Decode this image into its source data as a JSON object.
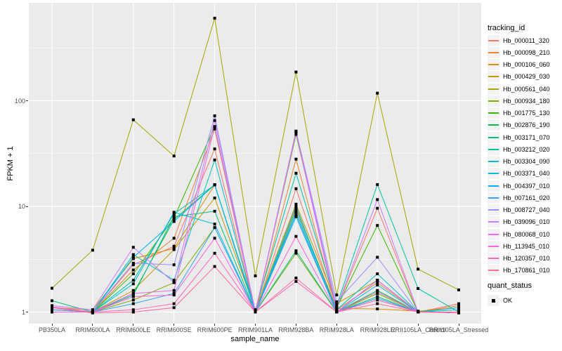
{
  "y_axis": {
    "title": "FPKM + 1"
  },
  "x_axis": {
    "title": "sample_name"
  },
  "legend": {
    "tracking_title": "tracking_id",
    "quant_title": "quant_status",
    "quant_ok_label": "OK"
  },
  "colors": {
    "panel_bg": "#EBEBEB",
    "grid": "#FFFFFF",
    "axis_text": "#4D4D4D",
    "point": "#000000",
    "legend_key_bg": "#F2F2F2"
  },
  "chart_data": {
    "type": "line",
    "xlabel": "sample_name",
    "ylabel": "FPKM + 1",
    "y_scale": "log10",
    "y_ticks": [
      1,
      10,
      100
    ],
    "y_minor_ticks": [
      3.162,
      31.62,
      316.2
    ],
    "ylim": [
      0.93,
      845
    ],
    "grid": true,
    "legend_position": "right",
    "point_marker": "filled-black-square",
    "x_categories": [
      "PB350LA",
      "RRIM600LA",
      "RRIM600LE",
      "RRIM600SE",
      "RRIM600PE",
      "RRIM901LA",
      "RRIM928BA",
      "RRIM928LA",
      "RRIM928LE",
      "RRII105LA_Control",
      "RRII105LA_Stressed"
    ],
    "series": [
      {
        "name": "Hb_000011_320",
        "color": "#F8766D",
        "values": [
          1.05,
          1.0,
          2.8,
          4.2,
          35.0,
          1.0,
          14.7,
          1.1,
          9.6,
          1.0,
          1.2
        ]
      },
      {
        "name": "Hb_000098_210",
        "color": "#EA8331",
        "values": [
          1.0,
          1.0,
          2.5,
          5.0,
          54.0,
          1.0,
          28.0,
          1.05,
          1.9,
          1.0,
          1.15
        ]
      },
      {
        "name": "Hb_000106_060",
        "color": "#D89000",
        "values": [
          1.1,
          1.05,
          3.2,
          4.0,
          16.0,
          1.0,
          9.5,
          1.08,
          1.07,
          1.02,
          1.1
        ]
      },
      {
        "name": "Hb_000429_030",
        "color": "#C09B00",
        "values": [
          1.0,
          1.0,
          1.6,
          3.9,
          12.0,
          1.05,
          10.5,
          1.2,
          2.0,
          1.0,
          1.0
        ]
      },
      {
        "name": "Hb_000561_040",
        "color": "#A3A500",
        "values": [
          1.68,
          3.85,
          66.0,
          30.0,
          605,
          2.2,
          187,
          1.45,
          118,
          2.55,
          1.62
        ]
      },
      {
        "name": "Hb_000934_180",
        "color": "#7CAE00",
        "values": [
          1.0,
          1.0,
          1.3,
          1.9,
          6.3,
          1.0,
          3.6,
          1.0,
          1.5,
          1.0,
          1.0
        ]
      },
      {
        "name": "Hb_001775_130",
        "color": "#39B600",
        "values": [
          1.05,
          1.0,
          2.3,
          7.8,
          57.0,
          1.0,
          48.0,
          1.1,
          6.6,
          1.0,
          1.0
        ]
      },
      {
        "name": "Hb_002876_190",
        "color": "#00BB4E",
        "values": [
          1.0,
          1.0,
          1.5,
          7.5,
          16.0,
          1.0,
          8.0,
          1.0,
          1.6,
          1.0,
          1.0
        ]
      },
      {
        "name": "Hb_003171_070",
        "color": "#00BF7D",
        "values": [
          1.28,
          1.0,
          1.45,
          8.0,
          9.0,
          1.0,
          3.8,
          1.0,
          1.4,
          1.0,
          1.0
        ]
      },
      {
        "name": "Hb_003212_020",
        "color": "#00C1A3",
        "values": [
          1.0,
          1.0,
          2.0,
          8.5,
          16.0,
          1.05,
          20.6,
          1.15,
          16.1,
          1.67,
          1.0
        ]
      },
      {
        "name": "Hb_003304_090",
        "color": "#00BFC4",
        "values": [
          1.0,
          1.0,
          3.5,
          2.0,
          27.5,
          1.0,
          9.0,
          1.05,
          2.3,
          1.0,
          1.05
        ]
      },
      {
        "name": "Hb_003371_040",
        "color": "#00BAE0",
        "values": [
          1.1,
          1.0,
          1.85,
          8.8,
          6.8,
          1.0,
          8.5,
          1.0,
          1.8,
          1.0,
          1.1
        ]
      },
      {
        "name": "Hb_004397_010",
        "color": "#00B0F6",
        "values": [
          1.0,
          1.0,
          3.3,
          7.2,
          16.0,
          1.0,
          10.0,
          1.0,
          2.0,
          1.0,
          1.0
        ]
      },
      {
        "name": "Hb_007161_020",
        "color": "#35A2FF",
        "values": [
          1.05,
          1.0,
          1.2,
          1.5,
          6.3,
          1.0,
          8.0,
          1.0,
          1.35,
          1.0,
          1.0
        ]
      },
      {
        "name": "Hb_008727_040",
        "color": "#9590FF",
        "values": [
          1.0,
          1.0,
          2.9,
          2.8,
          72.0,
          1.0,
          51.6,
          1.25,
          3.3,
          1.0,
          1.0
        ]
      },
      {
        "name": "Hb_039096_010",
        "color": "#C77CFF",
        "values": [
          1.15,
          1.05,
          4.1,
          1.9,
          65.0,
          1.0,
          51.0,
          1.1,
          11.6,
          1.0,
          1.0
        ]
      },
      {
        "name": "Hb_080068_010",
        "color": "#E76BF3",
        "values": [
          1.0,
          1.0,
          1.5,
          1.6,
          57.0,
          1.0,
          50.0,
          1.0,
          2.0,
          1.0,
          1.0
        ]
      },
      {
        "name": "Hb_113945_010",
        "color": "#FA62DB",
        "values": [
          1.0,
          1.0,
          1.4,
          1.45,
          5.0,
          1.0,
          5.2,
          1.0,
          1.55,
          1.0,
          1.0
        ]
      },
      {
        "name": "Hb_120357_010",
        "color": "#FF62BC",
        "values": [
          1.12,
          1.0,
          1.05,
          1.2,
          3.6,
          1.0,
          1.95,
          1.0,
          1.3,
          1.0,
          1.0
        ]
      },
      {
        "name": "Hb_170861_010",
        "color": "#FF6A98",
        "values": [
          1.1,
          0.98,
          1.0,
          1.1,
          2.7,
          1.0,
          2.1,
          1.0,
          1.2,
          1.0,
          0.98
        ]
      }
    ],
    "quant_status": {
      "label": "OK",
      "marker": "filled-black-square"
    }
  }
}
